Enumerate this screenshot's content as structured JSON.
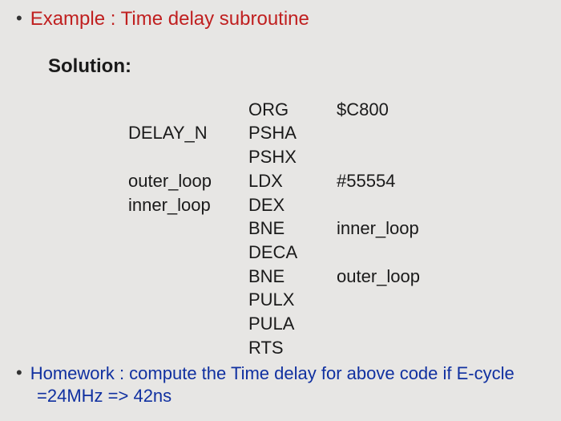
{
  "colors": {
    "red": "#c02020",
    "blue": "#1030a0",
    "black": "#1a1a1a",
    "bg": "#e7e6e4",
    "bullet": "#333333"
  },
  "fonts": {
    "title_size": 24,
    "body_size": 22,
    "code_size": 22
  },
  "example": {
    "bullet": "•",
    "text": "Example : Time delay subroutine"
  },
  "solution_label": "Solution:",
  "code": {
    "rows": [
      {
        "label": "",
        "mnemonic": "ORG",
        "operand": "$C800"
      },
      {
        "label": "DELAY_N",
        "mnemonic": "PSHA",
        "operand": ""
      },
      {
        "label": "",
        "mnemonic": "PSHX",
        "operand": ""
      },
      {
        "label": "outer_loop",
        "mnemonic": "LDX",
        "operand": "#55554"
      },
      {
        "label": "inner_loop",
        "mnemonic": "DEX",
        "operand": ""
      },
      {
        "label": "",
        "mnemonic": "BNE",
        "operand": "inner_loop"
      },
      {
        "label": "",
        "mnemonic": "DECA",
        "operand": ""
      },
      {
        "label": "",
        "mnemonic": "BNE",
        "operand": "outer_loop"
      },
      {
        "label": "",
        "mnemonic": "PULX",
        "operand": ""
      },
      {
        "label": "",
        "mnemonic": "PULA",
        "operand": ""
      },
      {
        "label": "",
        "mnemonic": "RTS",
        "operand": ""
      }
    ]
  },
  "homework": {
    "bullet": "•",
    "line1": "Homework : compute the  Time delay  for above code if E-cycle",
    "line2": "=24MHz => 42ns"
  }
}
